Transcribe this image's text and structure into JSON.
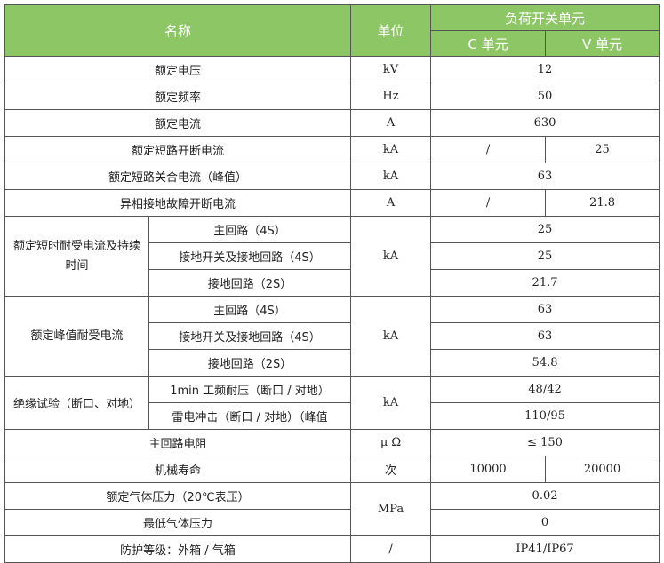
{
  "header": {
    "name": "名称",
    "unit": "单位",
    "group": "负荷开关单元",
    "c_unit": "C 单元",
    "v_unit": "V 单元",
    "background": "#8cc665"
  },
  "rows": {
    "voltage": {
      "name": "额定电压",
      "unit": "kV",
      "value": "12"
    },
    "frequency": {
      "name": "额定频率",
      "unit": "Hz",
      "value": "50"
    },
    "current": {
      "name": "额定电流",
      "unit": "A",
      "value": "630"
    },
    "short_break": {
      "name": "额定短路开断电流",
      "unit": "kA",
      "c": "/",
      "v": "25"
    },
    "short_make": {
      "name": "额定短路关合电流（峰值）",
      "unit": "kA",
      "value": "63"
    },
    "earth_fault": {
      "name": "异相接地故障开断电流",
      "unit": "A",
      "c": "/",
      "v": "21.8"
    },
    "short_time": {
      "name": "额定短时耐受电流及持续时间",
      "unit": "kA",
      "sub": [
        {
          "name": "主回路（4S）",
          "value": "25"
        },
        {
          "name": "接地开关及接地回路（4S）",
          "value": "25"
        },
        {
          "name": "接地回路（2S）",
          "value": "21.7"
        }
      ]
    },
    "peak": {
      "name": "额定峰值耐受电流",
      "unit": "kA",
      "sub": [
        {
          "name": "主回路（4S）",
          "value": "63"
        },
        {
          "name": "接地开关及接地回路（4S）",
          "value": "63"
        },
        {
          "name": "接地回路（2S）",
          "value": "54.8"
        }
      ]
    },
    "insulation": {
      "name": "绝缘试验（断口、对地）",
      "unit": "kA",
      "sub": [
        {
          "name": "1min 工频耐压（断口 / 对地）",
          "value": "48/42"
        },
        {
          "name": "雷电冲击（断口 / 对地）（峰值",
          "value": "110/95"
        }
      ]
    },
    "resistance": {
      "name": "主回路电阻",
      "unit": "μ Ω",
      "value": "≤ 150"
    },
    "mech_life": {
      "name": "机械寿命",
      "unit": "次",
      "c": "10000",
      "v": "20000"
    },
    "gas_rated": {
      "name": "额定气体压力（20℃表压）",
      "unit": "MPa",
      "value": "0.02"
    },
    "gas_min": {
      "name": "最低气体压力",
      "value": "0"
    },
    "protection": {
      "name": "防护等级：外箱 / 气箱",
      "unit": "/",
      "value": "IP41/IP67"
    }
  }
}
